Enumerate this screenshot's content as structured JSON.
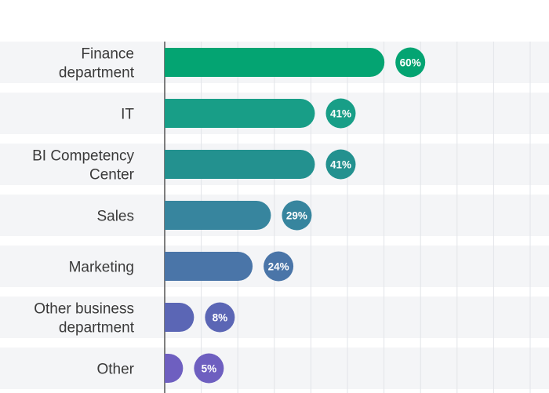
{
  "chart_data": {
    "type": "bar",
    "orientation": "horizontal",
    "title": "",
    "xlabel": "",
    "ylabel": "",
    "xlim": [
      0,
      100
    ],
    "grid": true,
    "legend": "none",
    "value_suffix": "%",
    "categories": [
      [
        "Finance",
        "department"
      ],
      [
        "IT"
      ],
      [
        "BI Competency",
        "Center"
      ],
      [
        "Sales"
      ],
      [
        "Marketing"
      ],
      [
        "Other business",
        "department"
      ],
      [
        "Other"
      ]
    ],
    "values": [
      60,
      41,
      41,
      29,
      24,
      8,
      5
    ],
    "value_labels": [
      "60%",
      "41%",
      "41%",
      "29%",
      "24%",
      "8%",
      "5%"
    ],
    "colors": [
      "#04a472",
      "#189e87",
      "#23918f",
      "#37859e",
      "#4a75a8",
      "#5b66b5",
      "#6e5fc0"
    ]
  }
}
